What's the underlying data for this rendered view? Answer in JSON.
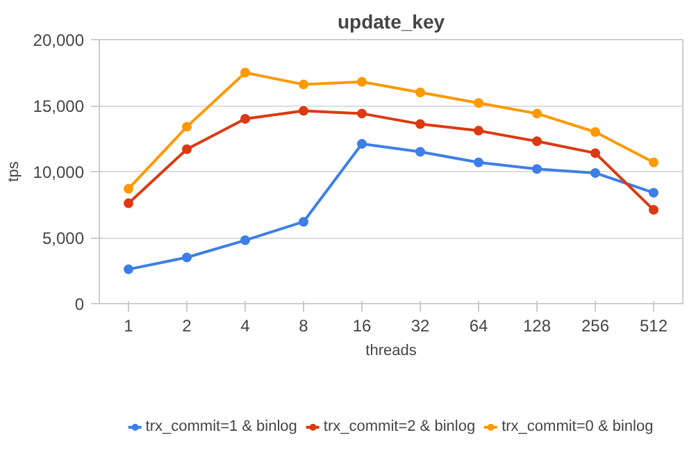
{
  "chart_data": {
    "type": "line",
    "title": "update_key",
    "xlabel": "threads",
    "ylabel": "tps",
    "categories": [
      "1",
      "2",
      "4",
      "8",
      "16",
      "32",
      "64",
      "128",
      "256",
      "512"
    ],
    "series": [
      {
        "name": "trx_commit=1 & binlog",
        "color": "#3d7fe6",
        "values": [
          2600,
          3500,
          4800,
          6200,
          12100,
          11500,
          10700,
          10200,
          9900,
          8400
        ]
      },
      {
        "name": "trx_commit=2 & binlog",
        "color": "#dc3912",
        "values": [
          7600,
          11700,
          14000,
          14600,
          14400,
          13600,
          13100,
          12300,
          11400,
          7100
        ]
      },
      {
        "name": "trx_commit=0 & binlog",
        "color": "#ff9900",
        "values": [
          8700,
          13400,
          17500,
          16600,
          16800,
          16000,
          15200,
          14400,
          13000,
          10700
        ]
      }
    ],
    "ylim": [
      0,
      20000
    ],
    "yticks": [
      {
        "value": 0,
        "label": "0"
      },
      {
        "value": 5000,
        "label": "5,000"
      },
      {
        "value": 10000,
        "label": "10,000"
      },
      {
        "value": 15000,
        "label": "15,000"
      },
      {
        "value": 20000,
        "label": "20,000"
      }
    ],
    "grid": "y",
    "legend": "bottom",
    "marker": "circle",
    "line_style": "solid"
  }
}
